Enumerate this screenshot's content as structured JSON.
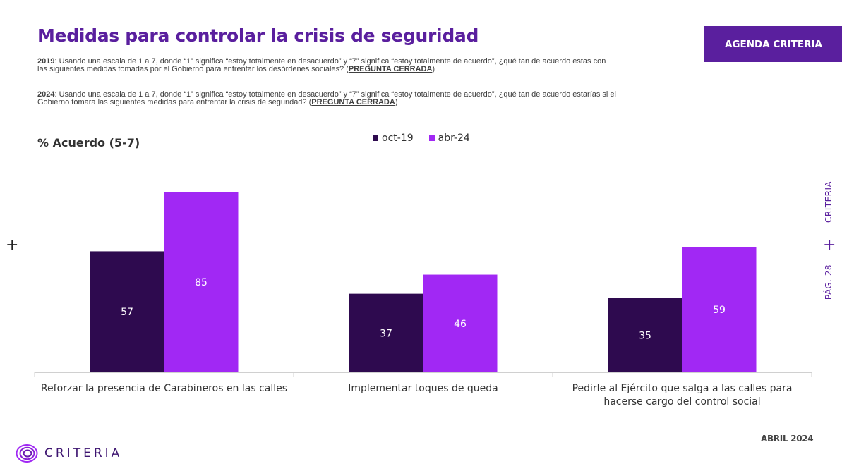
{
  "header": {
    "title": "Medidas para controlar la crisis de seguridad",
    "badge": "AGENDA CRITERIA"
  },
  "questions": [
    {
      "year": "2019",
      "text": ": Usando una escala de 1 a 7, donde “1” significa “estoy totalmente en desacuerdo” y “7” significa “estoy totalmente de acuerdo”, ¿qué tan de acuerdo estas con las siguientes medidas tomadas por el Gobierno para enfrentar los desórdenes sociales? (",
      "tag": "PREGUNTA CERRADA",
      "close": ")"
    },
    {
      "year": "2024",
      "text": ": Usando una escala de 1 a 7, donde “1” significa “estoy totalmente en desacuerdo” y “7” significa “estoy totalmente de acuerdo”, ¿qué tan de acuerdo estarías si el Gobierno tomara las siguientes medidas para enfrentar la crisis de seguridad? (",
      "tag": "PREGUNTA CERRADA",
      "close": ")"
    }
  ],
  "chart_subtitle": "% Acuerdo (5-7)",
  "side": {
    "brand": "CRITERIA",
    "page": "PÁG. 28"
  },
  "footer": {
    "date": "ABRIL 2024",
    "logo_text": "CRITERIA",
    "logo_icon": "criteria-spiral-icon"
  },
  "colors": {
    "brand": "#5a1f9e",
    "oct19": "#2e0a4f",
    "abr24": "#a128f4"
  },
  "chart_data": {
    "type": "bar",
    "categories": [
      [
        "Reforzar la presencia de Carabineros en las calles"
      ],
      [
        "Implementar toques de queda"
      ],
      [
        "Pedirle al Ejército que salga a las calles para",
        "hacerse cargo del control social"
      ]
    ],
    "series": [
      {
        "name": "oct-19",
        "values": [
          57,
          37,
          35
        ],
        "color": "#2e0a4f"
      },
      {
        "name": "abr-24",
        "values": [
          85,
          46,
          59
        ],
        "color": "#a128f4"
      }
    ],
    "ylim": [
      0,
      100
    ],
    "grid": false,
    "legend": "top-center"
  }
}
